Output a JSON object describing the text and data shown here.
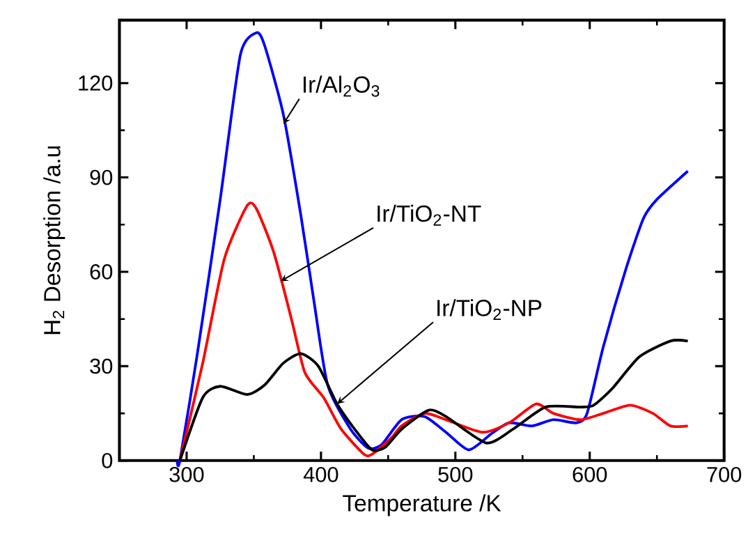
{
  "chart_data": {
    "type": "line",
    "xlabel": "Temperature /K",
    "ylabel": "H$_{2}$ Desorption /a.u",
    "xlim": [
      250,
      700
    ],
    "ylim": [
      0,
      140
    ],
    "xticks": [
      300,
      400,
      500,
      600,
      700
    ],
    "yticks": [
      0,
      30,
      60,
      90,
      120
    ],
    "grid": false,
    "marker": "none",
    "line_style": "solid",
    "series": [
      {
        "color": "#0000ff",
        "x": [
          293,
          295,
          308,
          325,
          340,
          352,
          358,
          372,
          385,
          395,
          405,
          422,
          435,
          445,
          460,
          477,
          493,
          510,
          527,
          540,
          557,
          573,
          590,
          598,
          610,
          627,
          640,
          650,
          673
        ],
        "values": [
          0,
          0,
          34,
          83,
          129,
          136,
          132,
          110,
          78,
          50,
          24,
          10,
          4,
          5,
          13,
          14,
          9,
          3.4,
          8.6,
          12,
          11,
          13,
          12,
          15,
          36,
          61,
          77,
          83,
          92
        ]
      },
      {
        "color": "#ff0000",
        "x": [
          295,
          312,
          328,
          345,
          352,
          365,
          378,
          388,
          402,
          415,
          432,
          438,
          452,
          460,
          477,
          493,
          520,
          540,
          560,
          573,
          593,
          610,
          630,
          647,
          660,
          673
        ],
        "values": [
          0,
          31,
          64,
          81,
          80,
          66,
          45,
          28,
          20,
          10,
          2,
          2,
          7,
          11,
          15,
          13,
          9,
          12,
          18,
          15,
          13,
          15,
          17.6,
          15,
          11,
          11
        ]
      },
      {
        "color": "#000000",
        "x": [
          295,
          312,
          325,
          345,
          358,
          372,
          385,
          398,
          412,
          425,
          438,
          448,
          460,
          480,
          493,
          523,
          543,
          567,
          593,
          603,
          617,
          637,
          660,
          673
        ],
        "values": [
          0,
          20,
          23.6,
          21,
          24,
          31,
          34,
          30,
          18,
          10,
          3.4,
          4.3,
          10,
          16,
          14,
          5.6,
          10,
          17,
          17,
          17.6,
          23,
          33,
          38,
          38
        ]
      }
    ],
    "annotations": [
      {
        "text": "Ir/Al$_{2}$O$_{3}$",
        "x": 372,
        "y": 107
      },
      {
        "text": "Ir/TiO$_{2}$-NT",
        "x": 370,
        "y": 57
      },
      {
        "text": "Ir/TiO$_{2}$-NP",
        "x": 412,
        "y": 18
      }
    ]
  }
}
